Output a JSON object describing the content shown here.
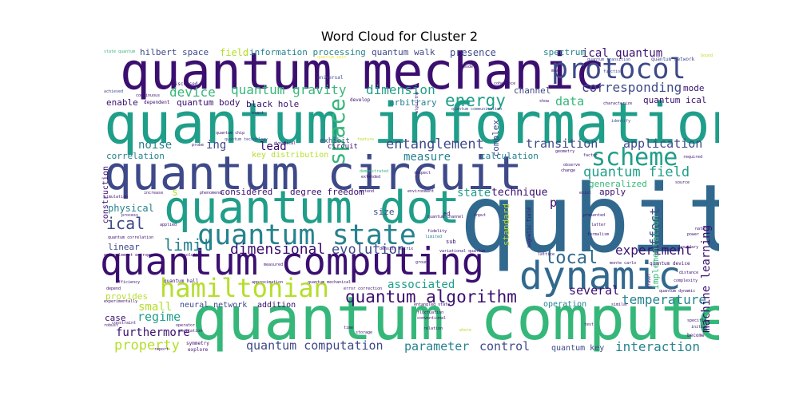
{
  "title": "Word Cloud for Cluster 2",
  "colors": {
    "background": "#ffffff",
    "palette": [
      "#3b0f70",
      "#31688e",
      "#26828e",
      "#1f9e89",
      "#35b779",
      "#6ece58",
      "#b5de2b",
      "#fde725",
      "#482878",
      "#3e4989"
    ]
  },
  "words": {
    "qubit": "qubit",
    "quantum_computer": "quantum computer",
    "quantum_information": "quantum information",
    "quantum_mechanic": "quantum mechanic",
    "quantum_circuit": "quantum circuit",
    "quantum_dot": "quantum dot",
    "quantum_computing": "quantum computing",
    "quantum_state": "quantum state",
    "dynamic": "dynamic",
    "hamiltonian": "hamiltonian",
    "protocol": "protocol",
    "scheme": "scheme",
    "space": "space",
    "quantum_algorithm": "quantum algorithm",
    "local": "local",
    "energy": "energy",
    "entanglement": "entanglement",
    "ical_big": "ical",
    "limit": "limit",
    "dimensional": "dimensional",
    "evolution": "evolution",
    "quantum_gravity": "quantum gravity",
    "device": "device",
    "dimension": "dimension",
    "corresponding": "corresponding",
    "ical_quantum": "ical quantum",
    "quantum_field": "quantum field",
    "experiment": "experiment",
    "temperature": "temperature",
    "interaction": "interaction",
    "quantum_computation": "quantum computation",
    "parameter": "parameter",
    "control": "control",
    "property": "property",
    "furthermore": "furthermore",
    "regime": "regime",
    "associated": "associated",
    "several": "several",
    "transition": "transition",
    "application": "application",
    "machine_learning": "machine learning",
    "effect": "effect",
    "data": "data",
    "noise": "noise",
    "ing": "ing",
    "lead": "lead",
    "measure": "measure",
    "state": "state",
    "technique": "technique",
    "physical": "physical",
    "small": "small",
    "presence": "presence",
    "spectrum": "spectrum",
    "hilbert_space": "hilbert space",
    "field": "field",
    "information_processing": "information processing",
    "quantum_walk": "quantum walk",
    "calculation": "calculation",
    "quantum_body": "quantum body",
    "black_hole": "black hole",
    "enable": "enable",
    "arbitrary": "arbitrary",
    "channel": "channel",
    "mode": "mode",
    "quantum_ical": "quantum ical",
    "correlation": "correlation",
    "key_distribution": "key distribution",
    "standard": "standard",
    "generalized": "generalized",
    "implementation": "implementation",
    "apply": "apply",
    "considered": "considered",
    "degree_freedom": "degree freedom",
    "size": "size",
    "linear": "linear",
    "construction": "construction",
    "provides": "provides",
    "case": "case",
    "neural_network": "neural network",
    "addition": "addition",
    "operation": "operation",
    "quantum_key": "quantum key",
    "complex": "complex",
    "p": "p",
    "s": "s",
    "exhibit": "exhibit",
    "circuit": "circuit",
    "quantum_network": "quantum network",
    "quantum_transition": "quantum transition",
    "bound": "bound",
    "universal": "universal",
    "develop": "develop",
    "coherence": "coherence",
    "function": "function",
    "discussed": "discussed",
    "achieved": "achieved",
    "continuous": "continuous",
    "dependent": "dependent",
    "quantum_communication": "quantum communication",
    "characterize": "characterize",
    "exact": "exact",
    "identify": "identify",
    "dynamical": "dynamical",
    "probe": "probe",
    "respect": "respect",
    "feature": "feature",
    "demonstrated": "demonstrated",
    "extended": "extended",
    "required": "required",
    "observe": "observe",
    "change": "change",
    "source": "source",
    "simulation": "simulation",
    "increase": "increase",
    "phenomenon": "phenomenon",
    "extend": "extend",
    "environment": "environment",
    "exist": "exist",
    "process": "process",
    "input": "input",
    "presented": "presented",
    "formalism": "formalism",
    "applied": "applied",
    "fidelity": "fidelity",
    "limited": "limited",
    "sub": "sub",
    "ed": "ed",
    "magnetic_field": "magnetic field",
    "lattice": "lattice",
    "latter": "latter",
    "power": "power",
    "boundary": "boundary",
    "nature": "nature",
    "variational_quantum": "variational quantum",
    "density_matrix": "density matrix",
    "quantum_correlation": "quantum correlation",
    "entanglement_entropy": "entanglement entropy",
    "solution": "solution",
    "measured": "measured",
    "ground": "ground",
    "quantum_device": "quantum device",
    "monte_carlo": "monte carlo",
    "distance": "distance",
    "complexity": "complexity",
    "efficiency": "efficiency",
    "quantum_hall": "quantum hall",
    "approximation": "approximation",
    "quantum_mechanical": "quantum mechanical",
    "error_correction": "error correction",
    "quantum_dynamic": "quantum dynamic",
    "depend": "depend",
    "experimentally": "experimentally",
    "fluctuation": "fluctuation",
    "entangled_state": "entangled state",
    "conventional": "conventional",
    "similar": "similar",
    "robust": "robust",
    "operator": "operator",
    "excitation": "excitation",
    "relation": "relation",
    "where": "where",
    "test": "test",
    "specific": "specific",
    "initial": "initial",
    "become": "become",
    "constraint": "constraint",
    "symmetry": "symmetry",
    "explore": "explore",
    "time": "time",
    "report": "report",
    "state_quantum": "state quantum",
    "quantum_spin": "quantum spin",
    "algorithm": "algorithm",
    "quantum_technology": "quantum technology",
    "factor": "factor",
    "geometry": "geometry",
    "mean": "mean",
    "show": "show",
    "model": "model",
    "quantum_channel": "quantum channel",
    "storage": "storage",
    "quantum_chip": "quantum chip",
    "travel": "travel"
  }
}
